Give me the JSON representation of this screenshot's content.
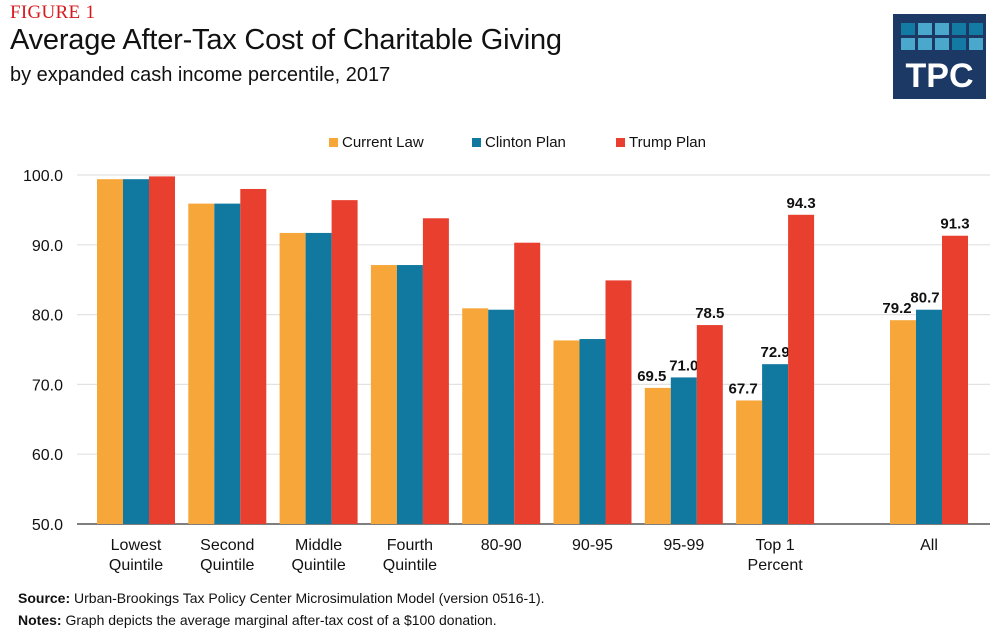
{
  "figure_label": "FIGURE 1",
  "logo": {
    "text": "TPC",
    "cell_colors": [
      "#127aa3",
      "#4aa8cc",
      "#4aa8cc",
      "#127aa3",
      "#127aa3",
      "#4aa8cc",
      "#4aa8cc",
      "#4aa8cc",
      "#127aa3",
      "#4aa8cc"
    ]
  },
  "footer": {
    "source_label": "Source:",
    "source_text": " Urban-Brookings Tax Policy Center Microsimulation Model (version 0516-1).",
    "notes_label": "Notes:",
    "notes_text": " Graph depicts the average marginal after-tax cost of a $100 donation."
  },
  "chart_data": {
    "type": "bar",
    "title": "Average After-Tax Cost of Charitable Giving",
    "subtitle": "by expanded cash income percentile, 2017",
    "xlabel": "",
    "ylabel": "",
    "ylim": [
      50,
      100
    ],
    "yticks": [
      50,
      60,
      70,
      80,
      90,
      100
    ],
    "ytick_labels": [
      "50.0",
      "60.0",
      "70.0",
      "80.0",
      "90.0",
      "100.0"
    ],
    "grid": true,
    "legend_position": "top-center",
    "categories": [
      "Lowest Quintile",
      "Second Quintile",
      "Middle Quintile",
      "Fourth Quintile",
      "80-90",
      "90-95",
      "95-99",
      "Top 1 Percent",
      "All"
    ],
    "category_labels": [
      [
        "Lowest",
        "Quintile"
      ],
      [
        "Second",
        "Quintile"
      ],
      [
        "Middle",
        "Quintile"
      ],
      [
        "Fourth",
        "Quintile"
      ],
      [
        "80-90"
      ],
      [
        "90-95"
      ],
      [
        "95-99"
      ],
      [
        "Top 1",
        "Percent"
      ],
      [
        "All"
      ]
    ],
    "gap_before_last_category": true,
    "series": [
      {
        "name": "Current Law",
        "color": "#f7a63a",
        "values": [
          99.4,
          95.9,
          91.7,
          87.1,
          80.9,
          76.3,
          69.5,
          67.7,
          79.2
        ],
        "data_labels": [
          null,
          null,
          null,
          null,
          null,
          null,
          "69.5",
          "67.7",
          "79.2"
        ]
      },
      {
        "name": "Clinton Plan",
        "color": "#11789f",
        "values": [
          99.4,
          95.9,
          91.7,
          87.1,
          80.7,
          76.5,
          71.0,
          72.9,
          80.7
        ],
        "data_labels": [
          null,
          null,
          null,
          null,
          null,
          null,
          "71.0",
          "72.9",
          "80.7"
        ]
      },
      {
        "name": "Trump Plan",
        "color": "#e93f2f",
        "values": [
          99.8,
          98.0,
          96.4,
          93.8,
          90.3,
          84.9,
          78.5,
          94.3,
          91.3
        ],
        "data_labels": [
          null,
          null,
          null,
          null,
          null,
          null,
          "78.5",
          "94.3",
          "91.3"
        ]
      }
    ]
  }
}
